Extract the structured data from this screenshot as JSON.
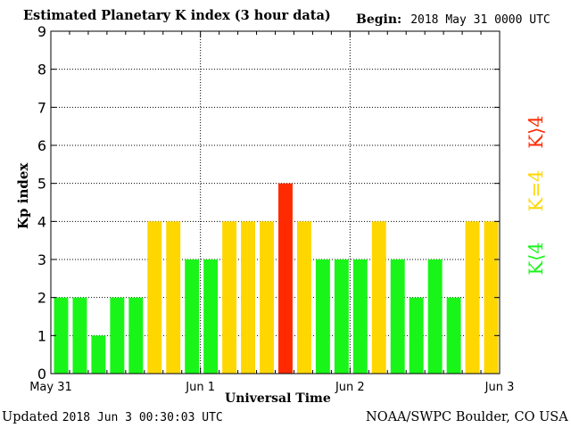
{
  "header": {
    "title": "Estimated Planetary K index (3 hour data)",
    "begin_label": "Begin:",
    "begin_value": "2018 May 31 0000 UTC"
  },
  "footer": {
    "updated_label": "Updated",
    "updated_value": "2018 Jun  3 00:30:03 UTC",
    "source": "NOAA/SWPC Boulder, CO USA"
  },
  "legend": {
    "high": "K⟩4",
    "equal": "K=4",
    "low": "K⟨4"
  },
  "colors": {
    "low": "#19f519",
    "equal": "#ffd700",
    "high": "#ff2a00",
    "grid": "#000000"
  },
  "chart_data": {
    "type": "bar",
    "title": "Estimated Planetary K index (3 hour data)",
    "xlabel": "Universal Time",
    "ylabel": "Kp index",
    "ylim": [
      0,
      9
    ],
    "yticks": [
      0,
      1,
      2,
      3,
      4,
      5,
      6,
      7,
      8,
      9
    ],
    "xticks": [
      "May 31",
      "Jun 1",
      "Jun 2",
      "Jun 3"
    ],
    "grid": true,
    "interval_hours": 3,
    "values": [
      2,
      2,
      1,
      2,
      2,
      4,
      4,
      3,
      3,
      4,
      4,
      4,
      5,
      4,
      3,
      3,
      3,
      4,
      3,
      2,
      3,
      2,
      4,
      4
    ]
  }
}
